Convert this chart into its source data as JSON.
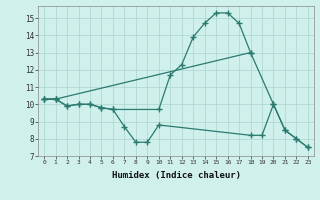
{
  "line1_x": [
    0,
    1,
    2,
    3,
    4,
    5,
    6,
    10,
    11,
    12,
    13,
    14,
    15,
    16,
    17,
    18
  ],
  "line1_y": [
    10.3,
    10.3,
    9.9,
    10.0,
    10.0,
    9.8,
    9.7,
    9.7,
    11.7,
    12.3,
    13.9,
    14.7,
    15.3,
    15.3,
    14.7,
    13.0
  ],
  "line2_x": [
    0,
    1,
    2,
    3,
    4,
    5,
    6,
    7,
    8,
    9,
    10,
    18,
    19,
    20,
    21,
    22,
    23
  ],
  "line2_y": [
    10.3,
    10.3,
    9.9,
    10.0,
    10.0,
    9.8,
    9.7,
    8.7,
    7.8,
    7.8,
    8.8,
    8.2,
    8.2,
    10.0,
    8.5,
    8.0,
    7.5
  ],
  "line3_x": [
    0,
    1,
    18,
    20,
    21,
    22,
    23
  ],
  "line3_y": [
    10.3,
    10.3,
    13.0,
    10.0,
    8.5,
    8.0,
    7.5
  ],
  "line_color": "#2a7a70",
  "bg_color": "#d0f0ec",
  "grid_color": "#aad4ce",
  "xlabel": "Humidex (Indice chaleur)",
  "xlim": [
    -0.5,
    23.5
  ],
  "ylim": [
    7.0,
    15.7
  ],
  "yticks": [
    7,
    8,
    9,
    10,
    11,
    12,
    13,
    14,
    15
  ],
  "xticks": [
    0,
    1,
    2,
    3,
    4,
    5,
    6,
    7,
    8,
    9,
    10,
    11,
    12,
    13,
    14,
    15,
    16,
    17,
    18,
    19,
    20,
    21,
    22,
    23
  ],
  "marker": "+",
  "markersize": 4,
  "linewidth": 0.9
}
